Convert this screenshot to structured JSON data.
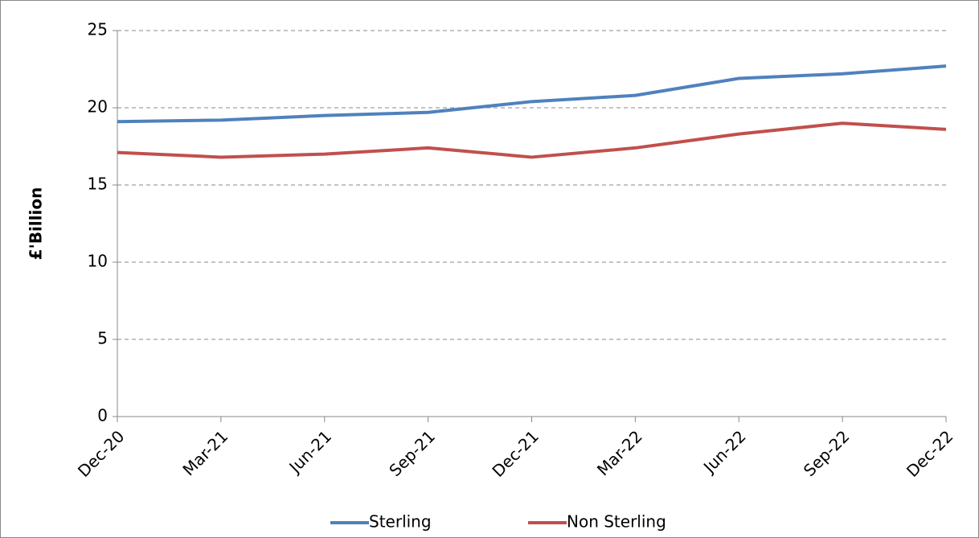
{
  "chart_data": {
    "type": "line",
    "y_label": "£'Billion",
    "categories": [
      "Dec-20",
      "Mar-21",
      "Jun-21",
      "Sep-21",
      "Dec-21",
      "Mar-22",
      "Jun-22",
      "Sep-22",
      "Dec-22"
    ],
    "series": [
      {
        "name": "Sterling",
        "color": "#4f81bd",
        "values": [
          19.1,
          19.2,
          19.5,
          19.7,
          20.4,
          20.8,
          21.9,
          22.2,
          22.7
        ]
      },
      {
        "name": "Non Sterling",
        "color": "#c0504d",
        "values": [
          17.1,
          16.8,
          17.0,
          17.4,
          16.8,
          17.4,
          18.3,
          19.0,
          18.6
        ]
      }
    ],
    "ylim": [
      0,
      25
    ],
    "yticks": [
      0,
      5,
      10,
      15,
      20,
      25
    ],
    "grid": true,
    "legend": "bottom"
  }
}
